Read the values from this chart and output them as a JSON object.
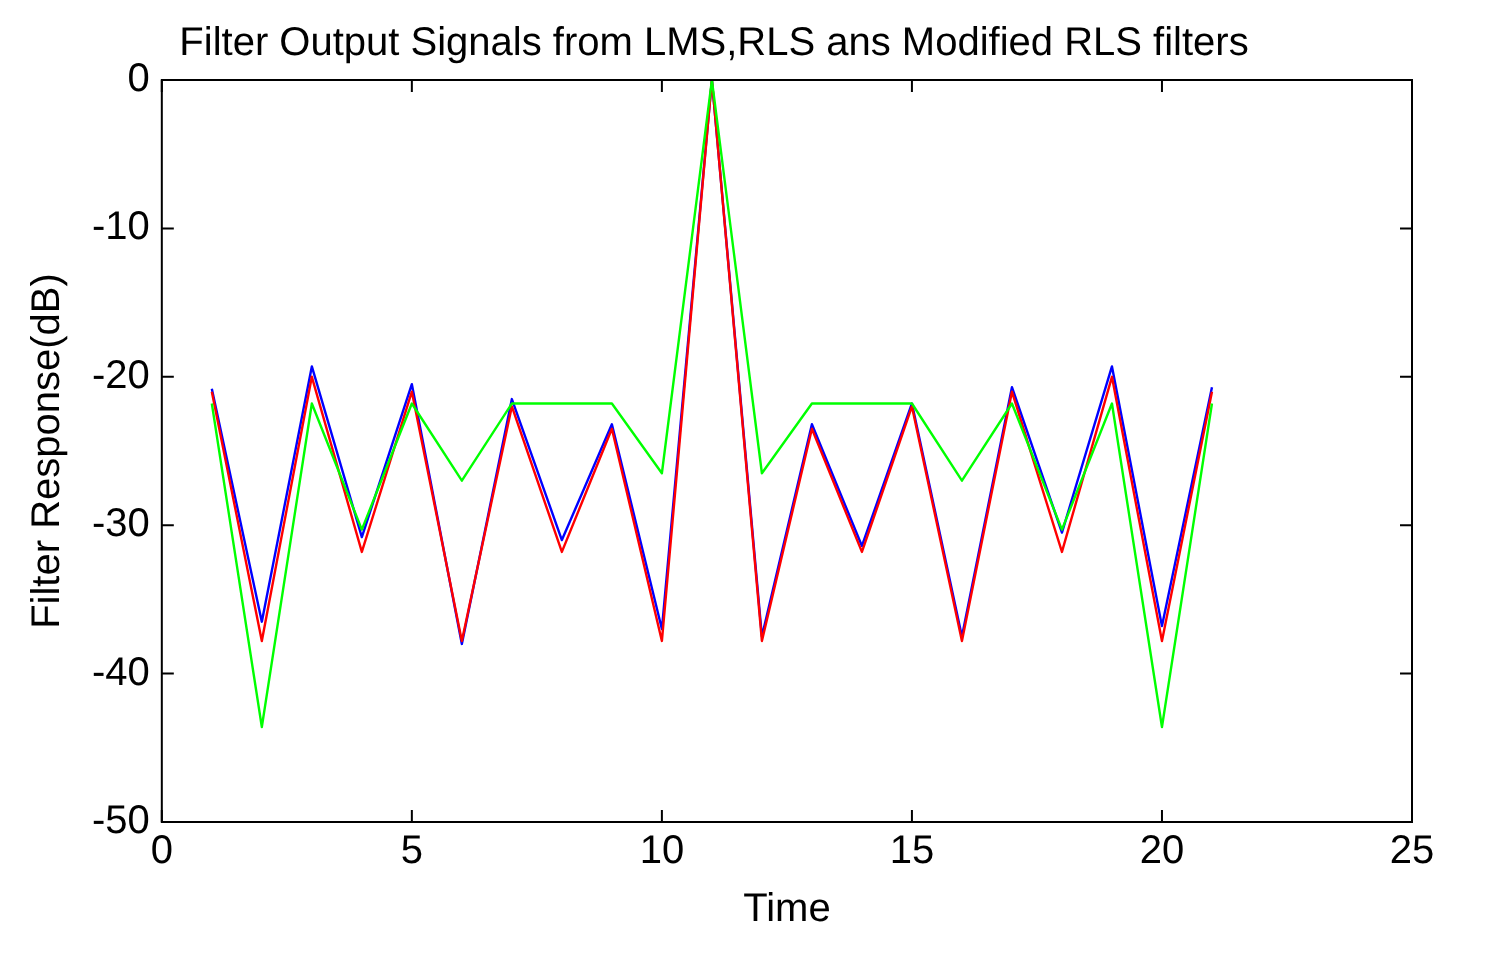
{
  "chart_data": {
    "type": "line",
    "title": "Filter Output Signals from LMS,RLS ans Modified RLS filters",
    "xlabel": "Time",
    "ylabel": "Filter Response(dB)",
    "x": [
      1,
      2,
      3,
      4,
      5,
      6,
      7,
      8,
      9,
      10,
      11,
      12,
      13,
      14,
      15,
      16,
      17,
      18,
      19,
      20,
      21
    ],
    "series": [
      {
        "color": "#0000ff",
        "values": [
          -20.8,
          -36.5,
          -19.3,
          -30.8,
          -20.5,
          -38,
          -21.5,
          -31,
          -23.2,
          -37,
          0,
          -37.5,
          -23.2,
          -31.4,
          -21.8,
          -37.5,
          -20.7,
          -30.5,
          -19.3,
          -36.8,
          -20.7
        ]
      },
      {
        "color": "#ff0000",
        "values": [
          -21,
          -37.8,
          -20,
          -31.8,
          -21,
          -37.8,
          -22,
          -31.8,
          -23.5,
          -37.8,
          0,
          -37.8,
          -23.5,
          -31.8,
          -22,
          -37.8,
          -21,
          -31.8,
          -20,
          -37.8,
          -21
        ]
      },
      {
        "color": "#00ff00",
        "values": [
          -21.8,
          -43.6,
          -21.8,
          -30.3,
          -21.8,
          -27,
          -21.8,
          -21.8,
          -21.8,
          -26.5,
          0,
          -26.5,
          -21.8,
          -21.8,
          -21.8,
          -27,
          -21.8,
          -30.3,
          -21.8,
          -43.6,
          -21.8
        ]
      }
    ],
    "xlim": [
      0,
      25
    ],
    "xticks": [
      0,
      5,
      10,
      15,
      20,
      25
    ],
    "ylim": [
      -50,
      0
    ],
    "yticks": [
      -50,
      -40,
      -30,
      -20,
      -10,
      0
    ],
    "grid": false,
    "legend": false,
    "marker": "none",
    "line_style": "solid"
  }
}
